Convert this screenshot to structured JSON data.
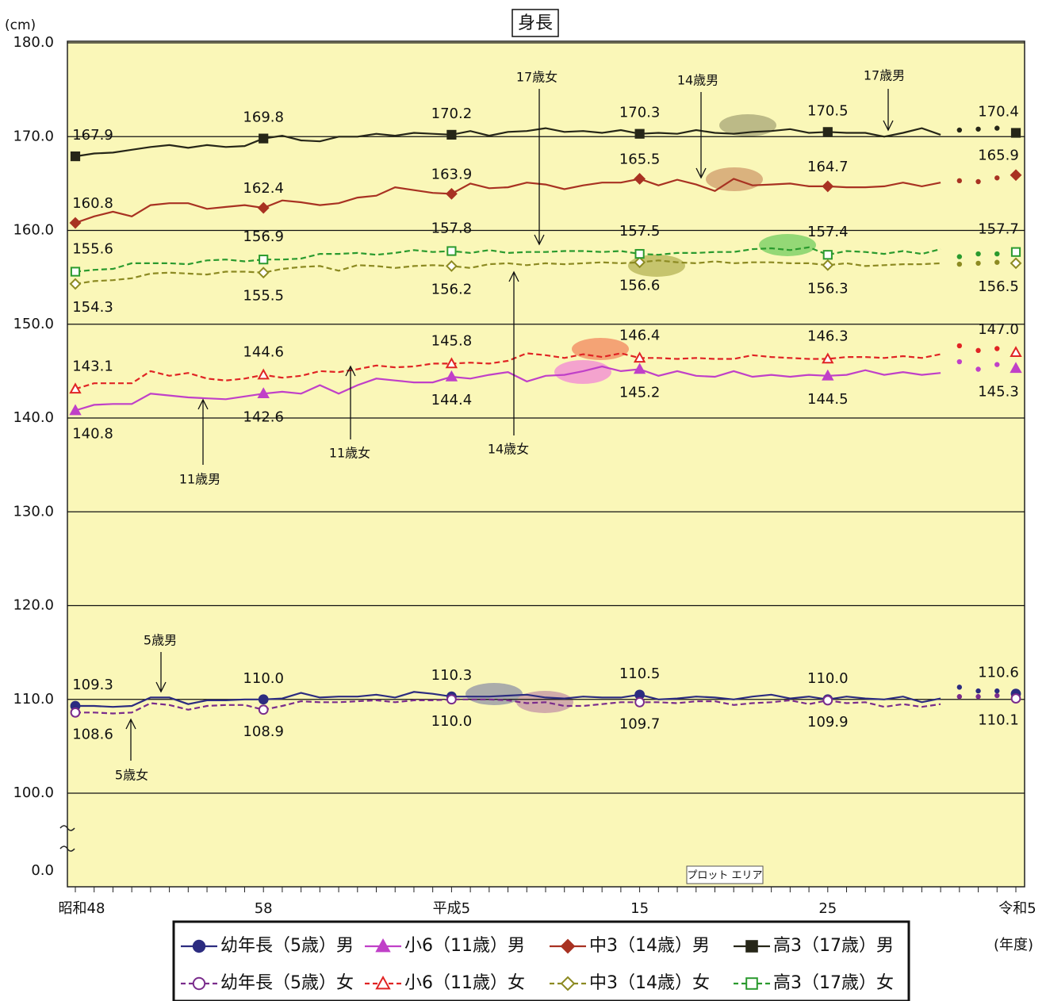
{
  "chart_data": {
    "type": "line",
    "title": "身長",
    "y_unit": "(cm)",
    "x_unit": "(年度)",
    "tooltip": "プロット エリア",
    "categories": [
      "昭和48",
      null,
      null,
      null,
      null,
      null,
      null,
      null,
      null,
      null,
      "58",
      null,
      null,
      null,
      null,
      null,
      null,
      null,
      null,
      null,
      "平成5",
      null,
      null,
      null,
      null,
      null,
      null,
      null,
      null,
      null,
      "15",
      null,
      null,
      null,
      null,
      null,
      null,
      null,
      null,
      null,
      "25",
      null,
      null,
      null,
      null,
      null,
      null,
      null,
      null,
      null,
      "令和5"
    ],
    "ylim": [
      0,
      180
    ],
    "y_break": [
      0,
      100
    ],
    "yticks": [
      {
        "value": 180,
        "label": "180.0"
      },
      {
        "value": 170,
        "label": "170.0"
      },
      {
        "value": 160,
        "label": "160.0"
      },
      {
        "value": 150,
        "label": "150.0"
      },
      {
        "value": 140,
        "label": "140.0"
      },
      {
        "value": 130,
        "label": "130.0"
      },
      {
        "value": 120,
        "label": "120.0"
      },
      {
        "value": 110,
        "label": "110.0"
      },
      {
        "value": 100,
        "label": "100.0"
      },
      {
        "value": 0,
        "label": "0.0"
      }
    ],
    "grid": true,
    "background": "#faf7b8",
    "series": [
      {
        "name": "幼年長（5歳）男",
        "color": "#2c2c80",
        "marker": "circle",
        "filled": true,
        "dashed": false,
        "values": [
          109.3,
          109.3,
          109.2,
          109.3,
          110.2,
          110.2,
          109.5,
          109.9,
          109.9,
          110.0,
          110.0,
          110.1,
          110.7,
          110.2,
          110.3,
          110.3,
          110.5,
          110.2,
          110.8,
          110.6,
          110.3,
          110.3,
          110.3,
          110.4,
          110.5,
          110.2,
          110.1,
          110.3,
          110.2,
          110.2,
          110.5,
          110.0,
          110.1,
          110.3,
          110.2,
          110.0,
          110.3,
          110.5,
          110.1,
          110.3,
          110.0,
          110.3,
          110.1,
          110.0,
          110.3,
          109.7,
          110.1,
          111.3,
          110.9,
          110.9,
          110.6
        ],
        "value_labels": [
          "109.3",
          null,
          null,
          null,
          null,
          null,
          null,
          null,
          null,
          null,
          "110.0",
          null,
          null,
          null,
          null,
          null,
          null,
          null,
          null,
          null,
          "110.3",
          null,
          null,
          null,
          null,
          null,
          null,
          null,
          null,
          null,
          "110.5",
          null,
          null,
          null,
          null,
          null,
          null,
          null,
          null,
          null,
          "110.0",
          null,
          null,
          null,
          null,
          null,
          null,
          null,
          null,
          null,
          "110.6"
        ]
      },
      {
        "name": "小6（11歳）男",
        "color": "#c040c8",
        "marker": "triangle",
        "filled": true,
        "dashed": false,
        "values": [
          140.8,
          141.4,
          141.5,
          141.5,
          142.6,
          142.4,
          142.2,
          142.1,
          142.0,
          142.3,
          142.6,
          142.8,
          142.6,
          143.5,
          142.6,
          143.5,
          144.2,
          144.0,
          143.8,
          143.8,
          144.4,
          144.2,
          144.6,
          144.9,
          143.9,
          144.5,
          144.6,
          145.0,
          145.5,
          145.0,
          145.2,
          144.5,
          145.0,
          144.5,
          144.4,
          145.0,
          144.4,
          144.6,
          144.4,
          144.6,
          144.5,
          144.6,
          145.1,
          144.6,
          144.9,
          144.6,
          144.8,
          146.0,
          145.2,
          145.7,
          145.3
        ],
        "value_labels": [
          "140.8",
          null,
          null,
          null,
          null,
          null,
          null,
          null,
          null,
          null,
          "142.6",
          null,
          null,
          null,
          null,
          null,
          null,
          null,
          null,
          null,
          "144.4",
          null,
          null,
          null,
          null,
          null,
          null,
          null,
          null,
          null,
          "145.2",
          null,
          null,
          null,
          null,
          null,
          null,
          null,
          null,
          null,
          "144.5",
          null,
          null,
          null,
          null,
          null,
          null,
          null,
          null,
          null,
          "145.3"
        ]
      },
      {
        "name": "中3（14歳）男",
        "color": "#a83222",
        "marker": "diamond",
        "filled": true,
        "dashed": false,
        "values": [
          160.8,
          161.5,
          162.0,
          161.5,
          162.7,
          162.9,
          162.9,
          162.3,
          162.5,
          162.7,
          162.4,
          163.2,
          163.0,
          162.7,
          162.9,
          163.5,
          163.7,
          164.6,
          164.3,
          164.0,
          163.9,
          165.0,
          164.5,
          164.6,
          165.1,
          164.9,
          164.4,
          164.8,
          165.1,
          165.1,
          165.5,
          164.8,
          165.4,
          164.9,
          164.2,
          165.5,
          164.8,
          164.9,
          165.0,
          164.7,
          164.7,
          164.6,
          164.6,
          164.7,
          165.1,
          164.7,
          165.1,
          165.3,
          165.2,
          165.6,
          165.9
        ],
        "value_labels": [
          "160.8",
          null,
          null,
          null,
          null,
          null,
          null,
          null,
          null,
          null,
          "162.4",
          null,
          null,
          null,
          null,
          null,
          null,
          null,
          null,
          null,
          "163.9",
          null,
          null,
          null,
          null,
          null,
          null,
          null,
          null,
          null,
          "165.5",
          null,
          null,
          null,
          null,
          null,
          null,
          null,
          null,
          null,
          "164.7",
          null,
          null,
          null,
          null,
          null,
          null,
          null,
          null,
          null,
          "165.9"
        ]
      },
      {
        "name": "高3（17歳）男",
        "color": "#262618",
        "marker": "square",
        "filled": true,
        "dashed": false,
        "values": [
          167.9,
          168.2,
          168.3,
          168.6,
          168.9,
          169.1,
          168.8,
          169.1,
          168.9,
          169.0,
          169.8,
          170.1,
          169.6,
          169.5,
          170.0,
          170.0,
          170.3,
          170.1,
          170.4,
          170.3,
          170.2,
          170.6,
          170.1,
          170.5,
          170.6,
          170.9,
          170.5,
          170.6,
          170.4,
          170.7,
          170.3,
          170.4,
          170.3,
          170.7,
          170.4,
          170.3,
          170.5,
          170.6,
          170.8,
          170.4,
          170.5,
          170.4,
          170.4,
          170.0,
          170.4,
          170.9,
          170.2,
          170.7,
          170.8,
          170.9,
          170.4
        ],
        "value_labels": [
          "167.9",
          null,
          null,
          null,
          null,
          null,
          null,
          null,
          null,
          null,
          "169.8",
          null,
          null,
          null,
          null,
          null,
          null,
          null,
          null,
          null,
          "170.2",
          null,
          null,
          null,
          null,
          null,
          null,
          null,
          null,
          null,
          "170.3",
          null,
          null,
          null,
          null,
          null,
          null,
          null,
          null,
          null,
          "170.5",
          null,
          null,
          null,
          null,
          null,
          null,
          null,
          null,
          null,
          "170.4"
        ]
      },
      {
        "name": "幼年長（5歳）女",
        "color": "#7a2c8c",
        "marker": "circle",
        "filled": false,
        "dashed": true,
        "values": [
          108.6,
          108.6,
          108.5,
          108.6,
          109.6,
          109.4,
          108.9,
          109.3,
          109.4,
          109.4,
          108.9,
          109.3,
          109.8,
          109.7,
          109.7,
          109.8,
          109.9,
          109.7,
          109.9,
          109.9,
          110.0,
          110.0,
          110.0,
          109.9,
          109.6,
          109.7,
          109.3,
          109.3,
          109.5,
          109.7,
          109.7,
          109.7,
          109.6,
          109.8,
          109.8,
          109.4,
          109.6,
          109.7,
          109.9,
          109.5,
          109.9,
          109.6,
          109.7,
          109.2,
          109.5,
          109.2,
          109.5,
          110.3,
          110.3,
          110.4,
          110.1
        ],
        "value_labels": [
          "108.6",
          null,
          null,
          null,
          null,
          null,
          null,
          null,
          null,
          null,
          "108.9",
          null,
          null,
          null,
          null,
          null,
          null,
          null,
          null,
          null,
          "110.0",
          null,
          null,
          null,
          null,
          null,
          null,
          null,
          null,
          null,
          "109.7",
          null,
          null,
          null,
          null,
          null,
          null,
          null,
          null,
          null,
          "109.9",
          null,
          null,
          null,
          null,
          null,
          null,
          null,
          null,
          null,
          "110.1"
        ]
      },
      {
        "name": "小6（11歳）女",
        "color": "#e02424",
        "marker": "triangle",
        "filled": false,
        "dashed": true,
        "values": [
          143.1,
          143.7,
          143.7,
          143.7,
          145.0,
          144.5,
          144.8,
          144.2,
          144.0,
          144.2,
          144.6,
          144.3,
          144.5,
          145.0,
          144.9,
          145.2,
          145.6,
          145.4,
          145.5,
          145.8,
          145.8,
          145.9,
          145.8,
          146.1,
          146.9,
          146.7,
          146.4,
          146.8,
          146.5,
          146.9,
          146.4,
          146.4,
          146.3,
          146.4,
          146.3,
          146.3,
          146.7,
          146.5,
          146.4,
          146.3,
          146.3,
          146.5,
          146.5,
          146.4,
          146.6,
          146.4,
          146.8,
          147.7,
          147.2,
          147.4,
          147.0
        ],
        "value_labels": [
          "143.1",
          null,
          null,
          null,
          null,
          null,
          null,
          null,
          null,
          null,
          "144.6",
          null,
          null,
          null,
          null,
          null,
          null,
          null,
          null,
          null,
          "145.8",
          null,
          null,
          null,
          null,
          null,
          null,
          null,
          null,
          null,
          "146.4",
          null,
          null,
          null,
          null,
          null,
          null,
          null,
          null,
          null,
          "146.3",
          null,
          null,
          null,
          null,
          null,
          null,
          null,
          null,
          null,
          "147.0"
        ]
      },
      {
        "name": "中3（14歳）女",
        "color": "#8c8a22",
        "marker": "diamond",
        "filled": false,
        "dashed": true,
        "values": [
          154.3,
          154.6,
          154.7,
          154.9,
          155.4,
          155.5,
          155.4,
          155.3,
          155.6,
          155.6,
          155.5,
          155.9,
          156.1,
          156.2,
          155.7,
          156.3,
          156.2,
          156.0,
          156.2,
          156.3,
          156.2,
          156.0,
          156.4,
          156.5,
          156.3,
          156.5,
          156.4,
          156.5,
          156.6,
          156.5,
          156.6,
          156.8,
          156.6,
          156.5,
          156.7,
          156.5,
          156.6,
          156.6,
          156.5,
          156.5,
          156.3,
          156.5,
          156.2,
          156.3,
          156.4,
          156.4,
          156.5,
          156.4,
          156.5,
          156.6,
          156.5
        ],
        "value_labels": [
          "154.3",
          null,
          null,
          null,
          null,
          null,
          null,
          null,
          null,
          null,
          "155.5",
          null,
          null,
          null,
          null,
          null,
          null,
          null,
          null,
          null,
          "156.2",
          null,
          null,
          null,
          null,
          null,
          null,
          null,
          null,
          null,
          "156.6",
          null,
          null,
          null,
          null,
          null,
          null,
          null,
          null,
          null,
          "156.3",
          null,
          null,
          null,
          null,
          null,
          null,
          null,
          null,
          null,
          "156.5"
        ]
      },
      {
        "name": "高3（17歳）女",
        "color": "#2a9a2e",
        "marker": "square",
        "filled": false,
        "dashed": true,
        "values": [
          155.6,
          155.8,
          155.9,
          156.5,
          156.5,
          156.5,
          156.4,
          156.8,
          156.9,
          156.7,
          156.9,
          156.9,
          157.0,
          157.5,
          157.5,
          157.6,
          157.4,
          157.6,
          157.9,
          157.7,
          157.8,
          157.6,
          157.9,
          157.6,
          157.7,
          157.7,
          157.8,
          157.8,
          157.7,
          157.8,
          157.5,
          157.4,
          157.6,
          157.6,
          157.7,
          157.7,
          158.0,
          158.1,
          157.9,
          158.2,
          157.4,
          157.8,
          157.7,
          157.5,
          157.8,
          157.5,
          158.0,
          157.2,
          157.5,
          157.5,
          157.7
        ],
        "value_labels": [
          "155.6",
          null,
          null,
          null,
          null,
          null,
          null,
          null,
          null,
          null,
          "156.9",
          null,
          null,
          null,
          null,
          null,
          null,
          null,
          null,
          null,
          "157.8",
          null,
          null,
          null,
          null,
          null,
          null,
          null,
          null,
          null,
          "157.5",
          null,
          null,
          null,
          null,
          null,
          null,
          null,
          null,
          null,
          "157.4",
          null,
          null,
          null,
          null,
          null,
          null,
          null,
          null,
          null,
          "157.7"
        ]
      }
    ],
    "annotations": [
      "17歳女",
      "14歳男",
      "17歳男",
      "11歳男",
      "11歳女",
      "14歳女",
      "5歳男",
      "5歳女"
    ]
  }
}
